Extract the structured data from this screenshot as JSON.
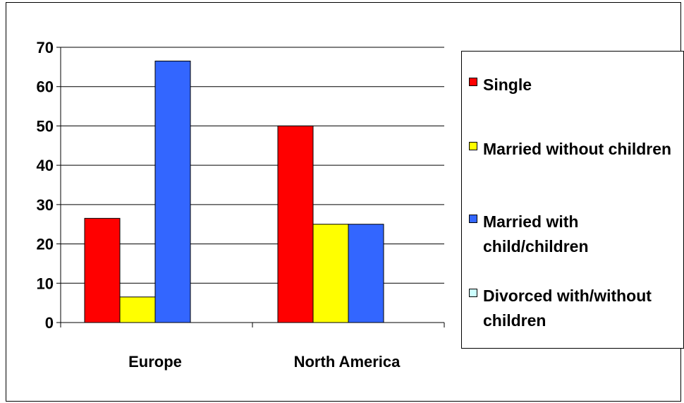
{
  "chart_data": {
    "type": "bar",
    "title": "",
    "xlabel": "",
    "ylabel": "",
    "categories": [
      "Europe",
      "North America"
    ],
    "series": [
      {
        "name": "Single",
        "values": [
          26.5,
          50
        ],
        "color": "#FF0000"
      },
      {
        "name": "Married without children",
        "values": [
          6.5,
          25
        ],
        "color": "#FFFF00"
      },
      {
        "name": "Married with child/children",
        "values": [
          66.5,
          25
        ],
        "color": "#3366FF"
      },
      {
        "name": "Divorced with/without children",
        "values": [
          0,
          0
        ],
        "color": "#CCFFFF"
      }
    ],
    "ylim": [
      0,
      70
    ],
    "yticks": [
      0,
      10,
      20,
      30,
      40,
      50,
      60,
      70
    ],
    "ytick_labels": [
      "0",
      "10",
      "20",
      "30",
      "40",
      "50",
      "60",
      "70"
    ],
    "grid": true,
    "legend_position": "right"
  }
}
